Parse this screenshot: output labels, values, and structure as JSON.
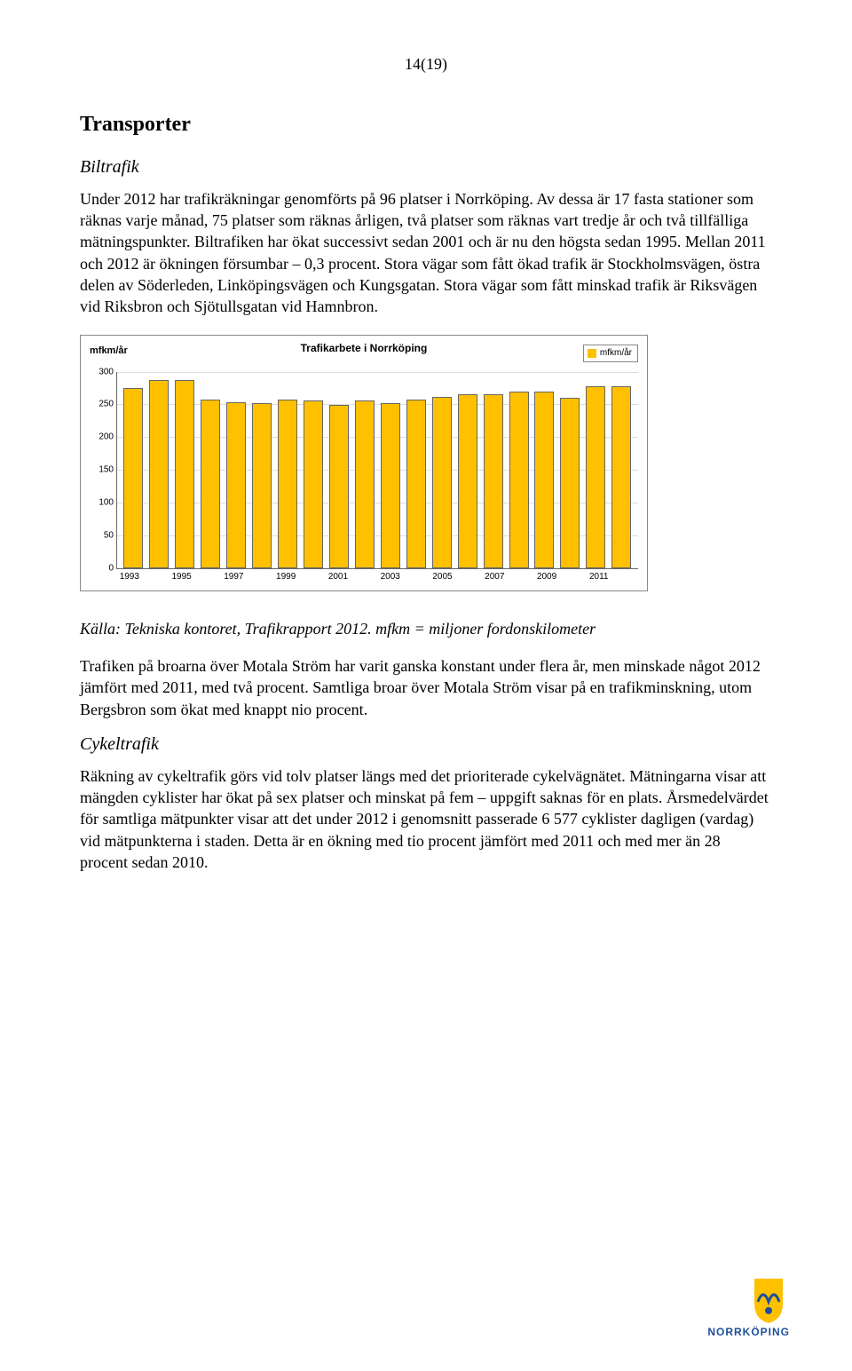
{
  "page_number": "14(19)",
  "h1": "Transporter",
  "h2_biltrafik": "Biltrafik",
  "para1": "Under 2012 har trafikräkningar genomförts på 96 platser i Norrköping. Av dessa är 17 fasta stationer som räknas varje månad, 75 platser som räknas årligen, två platser som räknas vart tredje år och två tillfälliga mätningspunkter. Biltrafiken har ökat successivt sedan 2001 och är nu den högsta sedan 1995. Mellan 2011 och 2012 är ökningen försumbar – 0,3 procent. Stora vägar som fått ökad trafik är Stockholmsvägen, östra delen av Söderleden, Linköpingsvägen och Kungsgatan. Stora vägar som fått minskad trafik är Riksvägen vid Riksbron och Sjötullsgatan vid Hamnbron.",
  "chart": {
    "type": "bar",
    "ylabel": "mfkm/år",
    "title": "Trafikarbete i Norrköping",
    "legend_label": "mfkm/år",
    "legend_swatch_color": "#ffc000",
    "bar_color": "#ffc000",
    "bar_border_color": "#666666",
    "grid_color": "#dddddd",
    "ylim": [
      0,
      300
    ],
    "yticks": [
      0,
      50,
      100,
      150,
      200,
      250,
      300
    ],
    "years": [
      1993,
      1994,
      1995,
      1996,
      1997,
      1998,
      1999,
      2000,
      2001,
      2002,
      2003,
      2004,
      2005,
      2006,
      2007,
      2008,
      2009,
      2010,
      2011,
      2012
    ],
    "values": [
      275,
      288,
      288,
      258,
      254,
      252,
      258,
      256,
      250,
      256,
      252,
      258,
      262,
      265,
      265,
      270,
      270,
      260,
      278,
      278
    ],
    "xtick_labels": [
      "1993",
      "",
      "1995",
      "",
      "1997",
      "",
      "1999",
      "",
      "2001",
      "",
      "2003",
      "",
      "2005",
      "",
      "2007",
      "",
      "2009",
      "",
      "2011",
      ""
    ]
  },
  "source": "Källa: Tekniska kontoret, Trafikrapport 2012. mfkm = miljoner fordonskilometer",
  "para2": "Trafiken på broarna över Motala Ström har varit ganska konstant under flera år, men minskade något 2012 jämfört med 2011, med två procent. Samtliga broar över Motala Ström visar på en trafikminskning, utom Bergsbron som ökat med knappt nio procent.",
  "h2_cykel": "Cykeltrafik",
  "para3": "Räkning av cykeltrafik görs vid tolv platser längs med det prioriterade cykelvägnätet. Mätningarna visar att mängden cyklister har ökat på sex platser och minskat på fem – uppgift saknas för en plats. Årsmedelvärdet för samtliga mätpunkter visar att det under 2012 i genomsnitt passerade 6 577 cyklister dagligen (vardag) vid mätpunkterna i staden. Detta är en ökning med tio procent jämfört med 2011 och med mer än 28 procent sedan 2010.",
  "logo_text": "NORRKÖPING",
  "logo_colors": {
    "yellow": "#ffc000",
    "blue": "#1f4e9c"
  }
}
